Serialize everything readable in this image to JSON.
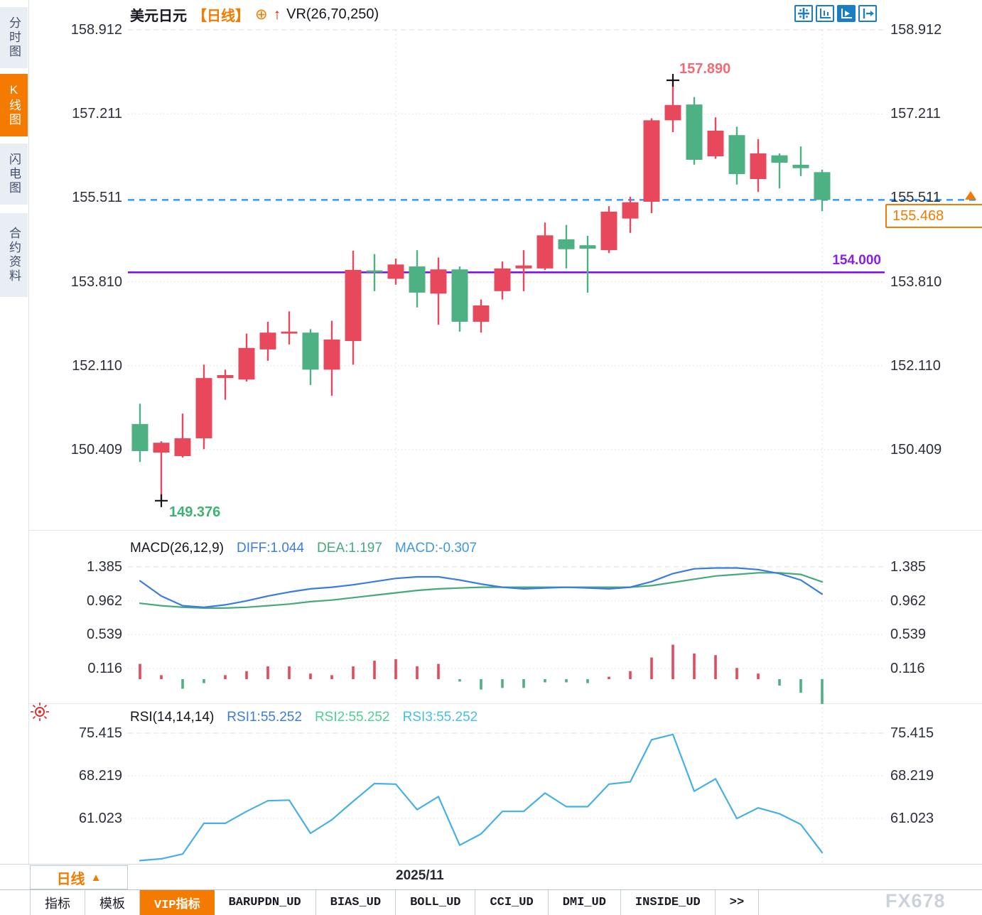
{
  "app": {
    "watermark": "FX678"
  },
  "sidebar": {
    "items": [
      {
        "label": "分时图",
        "active": false
      },
      {
        "label": "K线图",
        "active": true
      },
      {
        "label": "闪电图",
        "active": false
      },
      {
        "label": "合约资料",
        "active": false
      }
    ]
  },
  "header": {
    "symbol": "美元日元",
    "period_tag": "【日线】",
    "circle_plus_icon": "⊕",
    "up_arrow_icon": "↑",
    "indicator_label": "VR(26,70,250)"
  },
  "toolbar": {
    "icons": [
      "pan-icon",
      "axis-chart-icon",
      "axis-play-icon",
      "export-icon"
    ],
    "active_index": 2
  },
  "main_chart": {
    "y_axis_labels": [
      "158.912",
      "157.211",
      "155.511",
      "153.810",
      "152.110",
      "150.409"
    ],
    "high_annotation": "157.890",
    "low_annotation": "149.376",
    "hline_annotation": "154.000",
    "last_price": "155.468"
  },
  "macd_panel": {
    "title": "MACD(26,12,9)",
    "diff_label": "DIFF:1.044",
    "dea_label": "DEA:1.197",
    "macd_label": "MACD:-0.307",
    "y_axis_labels": [
      "1.385",
      "0.962",
      "0.539",
      "0.116"
    ]
  },
  "rsi_panel": {
    "title": "RSI(14,14,14)",
    "rsi1_label": "RSI1:55.252",
    "rsi2_label": "RSI2:55.252",
    "rsi3_label": "RSI3:55.252",
    "y_axis_labels": [
      "75.415",
      "68.219",
      "61.023"
    ]
  },
  "footer": {
    "period_button": "日线",
    "period_arrow": "▲",
    "date_label": "2025/11",
    "tabs": [
      {
        "label": "指标",
        "active": false
      },
      {
        "label": "模板",
        "active": false
      },
      {
        "label": "VIP指标",
        "active": true
      },
      {
        "label": "BARUPDN_UD",
        "active": false
      },
      {
        "label": "BIAS_UD",
        "active": false
      },
      {
        "label": "BOLL_UD",
        "active": false
      },
      {
        "label": "CCI_UD",
        "active": false
      },
      {
        "label": "DMI_UD",
        "active": false
      },
      {
        "label": "INSIDE_UD",
        "active": false
      },
      {
        "label": ">>",
        "active": false
      }
    ]
  },
  "colors": {
    "up": "#e8485c",
    "down": "#4eb183",
    "accent_orange": "#f57a00",
    "purple_line": "#7d05f5",
    "dashed_blue": "#1e90ff",
    "diff_blue": "#3a7ce0",
    "dea_green": "#46a87d",
    "rsi_blue": "#45b0e6",
    "high_label": "#f26a75",
    "low_label": "#3cb371",
    "grid": "#dcdcdc",
    "cross": "#141414"
  },
  "chart_data": [
    {
      "type": "candlestick",
      "title": "美元日元 日线 (USD/JPY daily)",
      "y_ticks": [
        "158.912",
        "157.211",
        "155.511",
        "153.810",
        "152.110",
        "150.409"
      ],
      "ylim": [
        149.0,
        159.3
      ],
      "x_axis_label": "2025/11",
      "gridline_indices": [
        12,
        32
      ],
      "high_marker_index": 25,
      "low_marker_index": 1,
      "annotations": {
        "high": 157.89,
        "low": 149.376,
        "support_line": 154.0,
        "last_price": 155.468
      },
      "candles_format": [
        "open",
        "high",
        "low",
        "close"
      ],
      "candles": [
        [
          150.93,
          151.34,
          150.16,
          150.38
        ],
        [
          150.35,
          150.58,
          149.376,
          150.55
        ],
        [
          150.28,
          151.14,
          150.25,
          150.64
        ],
        [
          150.64,
          152.13,
          150.42,
          151.86
        ],
        [
          151.86,
          152.03,
          151.42,
          151.92
        ],
        [
          151.83,
          152.76,
          151.79,
          152.47
        ],
        [
          152.44,
          153.0,
          152.21,
          152.78
        ],
        [
          152.76,
          153.21,
          152.54,
          152.8
        ],
        [
          152.78,
          152.85,
          151.72,
          152.03
        ],
        [
          152.03,
          153.02,
          151.5,
          152.64
        ],
        [
          152.61,
          154.44,
          152.13,
          154.05
        ],
        [
          154.04,
          154.37,
          153.62,
          154.0
        ],
        [
          153.87,
          154.28,
          153.75,
          154.16
        ],
        [
          154.12,
          154.45,
          153.29,
          153.59
        ],
        [
          153.57,
          154.3,
          152.94,
          154.06
        ],
        [
          154.06,
          154.12,
          152.8,
          153.0
        ],
        [
          153.0,
          153.45,
          152.78,
          153.33
        ],
        [
          153.62,
          154.22,
          153.45,
          154.08
        ],
        [
          154.08,
          154.45,
          153.62,
          154.14
        ],
        [
          154.08,
          155.01,
          154.05,
          154.75
        ],
        [
          154.67,
          154.96,
          154.08,
          154.47
        ],
        [
          154.55,
          154.74,
          153.59,
          154.48
        ],
        [
          154.45,
          155.34,
          154.39,
          155.23
        ],
        [
          155.09,
          155.53,
          154.8,
          155.42
        ],
        [
          155.43,
          157.12,
          155.2,
          157.08
        ],
        [
          157.08,
          157.89,
          156.84,
          157.39
        ],
        [
          157.4,
          157.55,
          156.18,
          156.28
        ],
        [
          156.35,
          157.14,
          156.3,
          156.87
        ],
        [
          156.78,
          156.95,
          155.78,
          155.99
        ],
        [
          155.89,
          156.7,
          155.63,
          156.41
        ],
        [
          156.37,
          156.41,
          155.7,
          156.22
        ],
        [
          156.18,
          156.55,
          155.95,
          156.11
        ],
        [
          156.03,
          156.08,
          155.24,
          155.468
        ]
      ]
    },
    {
      "type": "macd",
      "params": "MACD(26,12,9)",
      "last_values": {
        "DIFF": 1.044,
        "DEA": 1.197,
        "MACD": -0.307
      },
      "y_ticks": [
        "1.385",
        "0.962",
        "0.539",
        "0.116"
      ],
      "diff": [
        1.21,
        1.02,
        0.9,
        0.88,
        0.91,
        0.96,
        1.02,
        1.07,
        1.11,
        1.13,
        1.16,
        1.2,
        1.24,
        1.26,
        1.26,
        1.22,
        1.17,
        1.13,
        1.11,
        1.12,
        1.13,
        1.12,
        1.11,
        1.13,
        1.2,
        1.3,
        1.36,
        1.37,
        1.37,
        1.35,
        1.3,
        1.22,
        1.044
      ],
      "dea": [
        0.93,
        0.9,
        0.88,
        0.87,
        0.87,
        0.88,
        0.9,
        0.92,
        0.95,
        0.97,
        1.0,
        1.03,
        1.06,
        1.09,
        1.11,
        1.12,
        1.13,
        1.13,
        1.13,
        1.13,
        1.13,
        1.13,
        1.13,
        1.13,
        1.15,
        1.19,
        1.23,
        1.27,
        1.29,
        1.31,
        1.31,
        1.29,
        1.197
      ],
      "histogram": [
        0.19,
        0.05,
        -0.12,
        -0.05,
        0.05,
        0.1,
        0.16,
        0.16,
        0.07,
        0.05,
        0.16,
        0.23,
        0.25,
        0.16,
        0.19,
        -0.03,
        -0.13,
        -0.11,
        -0.11,
        -0.04,
        -0.04,
        -0.05,
        0.03,
        0.1,
        0.27,
        0.43,
        0.32,
        0.3,
        0.14,
        0.07,
        -0.08,
        -0.17,
        -0.31
      ]
    },
    {
      "type": "line",
      "name": "RSI(14,14,14)",
      "last_values": {
        "RSI1": 55.252,
        "RSI2": 55.252,
        "RSI3": 55.252
      },
      "y_ticks": [
        "75.415",
        "68.219",
        "61.023"
      ],
      "values": [
        53.9,
        54.2,
        55.0,
        60.2,
        60.2,
        62.2,
        64.0,
        64.1,
        58.5,
        60.8,
        63.9,
        66.9,
        66.8,
        62.5,
        64.7,
        56.5,
        58.4,
        62.2,
        62.2,
        65.3,
        63.0,
        63.0,
        66.8,
        67.2,
        74.3,
        75.2,
        65.6,
        67.7,
        61.0,
        62.8,
        61.8,
        60.0,
        55.252
      ]
    }
  ]
}
